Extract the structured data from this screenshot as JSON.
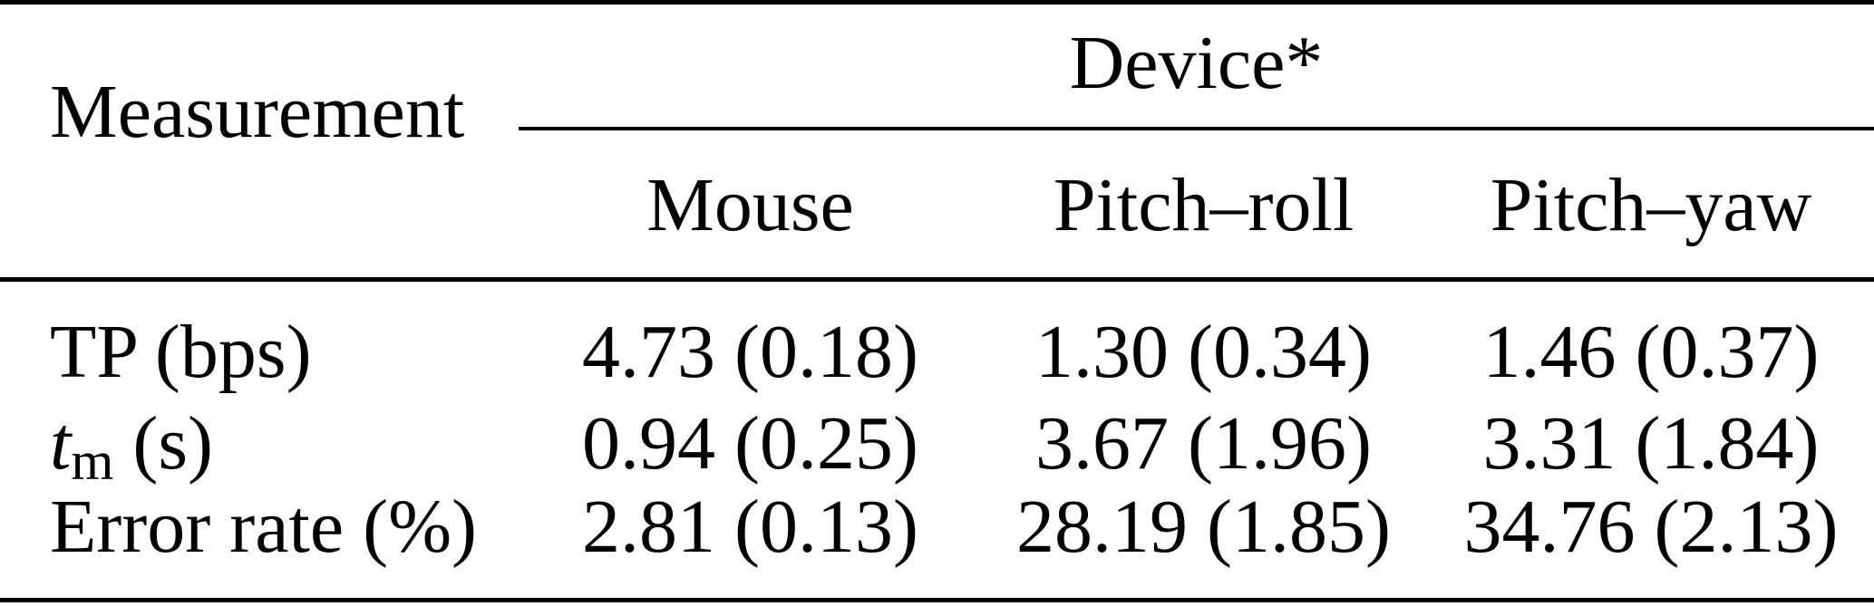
{
  "table": {
    "header": {
      "measurement_label": "Measurement",
      "device_group_label": "Device*",
      "device_columns": [
        "Mouse",
        "Pitch–roll",
        "Pitch–yaw"
      ]
    },
    "rows": [
      {
        "label": "TP (bps)",
        "values": [
          "4.73 (0.18)",
          "1.30 (0.34)",
          "1.46 (0.37)"
        ]
      },
      {
        "label_var": "t",
        "label_sub": "m",
        "label_unit": " (s)",
        "values": [
          "0.94 (0.25)",
          "3.67 (1.96)",
          "3.31 (1.84)"
        ]
      },
      {
        "label": "Error rate (%)",
        "values": [
          "2.81 (0.13)",
          "28.19 (1.85)",
          "34.76 (2.13)"
        ]
      }
    ]
  },
  "chart_data": {
    "type": "table",
    "columns": [
      "Measurement",
      "Mouse",
      "Pitch–roll",
      "Pitch–yaw"
    ],
    "rows": [
      [
        "TP (bps)",
        "4.73 (0.18)",
        "1.30 (0.34)",
        "1.46 (0.37)"
      ],
      [
        "tm (s)",
        "0.94 (0.25)",
        "3.67 (1.96)",
        "3.31 (1.84)"
      ],
      [
        "Error rate (%)",
        "2.81 (0.13)",
        "28.19 (1.85)",
        "34.76 (2.13)"
      ]
    ]
  },
  "colors": {
    "background": "#ffffff",
    "text": "#000000",
    "rule": "#000000"
  }
}
